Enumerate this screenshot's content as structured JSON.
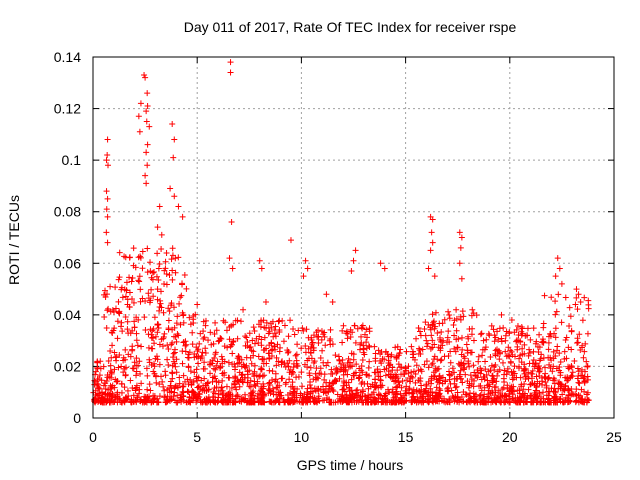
{
  "chart_data": {
    "type": "scatter",
    "title": "Day 011 of 2017, Rate Of TEC Index for receiver rspe",
    "xlabel": "GPS time / hours",
    "ylabel": "ROTI / TECUs",
    "xlim": [
      0,
      25
    ],
    "ylim": [
      0,
      0.14
    ],
    "x_ticks": [
      0,
      5,
      10,
      15,
      20,
      25
    ],
    "x_tick_labels": [
      "0",
      "5",
      "10",
      "15",
      "20",
      "25"
    ],
    "y_ticks": [
      0,
      0.02,
      0.04,
      0.06,
      0.08,
      0.1,
      0.12,
      0.14
    ],
    "y_tick_labels": [
      "0",
      "0.02",
      "0.04",
      "0.06",
      "0.08",
      "0.1",
      "0.12",
      "0.14"
    ],
    "grid": true,
    "marker": "+",
    "color": "#ff0000",
    "x_range_observed": [
      0,
      23.8
    ],
    "y_range_observed": [
      0.005,
      0.138
    ],
    "series": [
      {
        "name": "ROTI",
        "points": [
          [
            2.45,
            0.133
          ],
          [
            2.5,
            0.132
          ],
          [
            2.6,
            0.126
          ],
          [
            2.62,
            0.121
          ],
          [
            2.55,
            0.119
          ],
          [
            2.58,
            0.115
          ],
          [
            2.7,
            0.113
          ],
          [
            2.62,
            0.106
          ],
          [
            2.55,
            0.103
          ],
          [
            2.6,
            0.098
          ],
          [
            2.5,
            0.094
          ],
          [
            2.55,
            0.091
          ],
          [
            2.3,
            0.122
          ],
          [
            2.2,
            0.117
          ],
          [
            2.25,
            0.111
          ],
          [
            0.7,
            0.108
          ],
          [
            0.68,
            0.102
          ],
          [
            0.65,
            0.1
          ],
          [
            0.72,
            0.098
          ],
          [
            0.65,
            0.088
          ],
          [
            0.7,
            0.085
          ],
          [
            0.66,
            0.081
          ],
          [
            0.7,
            0.078
          ],
          [
            0.64,
            0.072
          ],
          [
            0.7,
            0.068
          ],
          [
            3.8,
            0.114
          ],
          [
            3.9,
            0.108
          ],
          [
            3.85,
            0.101
          ],
          [
            3.7,
            0.089
          ],
          [
            3.9,
            0.086
          ],
          [
            4.1,
            0.082
          ],
          [
            4.3,
            0.078
          ],
          [
            3.2,
            0.082
          ],
          [
            3.1,
            0.074
          ],
          [
            3.3,
            0.071
          ],
          [
            6.6,
            0.138
          ],
          [
            6.6,
            0.134
          ],
          [
            6.65,
            0.076
          ],
          [
            6.55,
            0.062
          ],
          [
            6.7,
            0.058
          ],
          [
            9.5,
            0.069
          ],
          [
            10.2,
            0.061
          ],
          [
            10.3,
            0.058
          ],
          [
            10.1,
            0.055
          ],
          [
            12.6,
            0.065
          ],
          [
            12.5,
            0.061
          ],
          [
            12.4,
            0.057
          ],
          [
            13.8,
            0.06
          ],
          [
            14.0,
            0.058
          ],
          [
            16.2,
            0.078
          ],
          [
            16.3,
            0.077
          ],
          [
            16.25,
            0.072
          ],
          [
            16.3,
            0.068
          ],
          [
            16.2,
            0.065
          ],
          [
            16.1,
            0.058
          ],
          [
            16.4,
            0.055
          ],
          [
            17.6,
            0.072
          ],
          [
            17.7,
            0.07
          ],
          [
            17.65,
            0.066
          ],
          [
            17.6,
            0.06
          ],
          [
            17.7,
            0.054
          ],
          [
            22.3,
            0.062
          ],
          [
            22.4,
            0.058
          ],
          [
            22.2,
            0.055
          ],
          [
            22.5,
            0.052
          ],
          [
            23.2,
            0.05
          ],
          [
            23.3,
            0.048
          ],
          [
            23.4,
            0.045
          ],
          [
            8.0,
            0.061
          ],
          [
            8.1,
            0.058
          ],
          [
            8.3,
            0.045
          ],
          [
            7.2,
            0.042
          ],
          [
            5.0,
            0.044
          ],
          [
            11.2,
            0.048
          ],
          [
            11.5,
            0.045
          ],
          [
            18.2,
            0.042
          ],
          [
            19.6,
            0.04
          ],
          [
            20.1,
            0.038
          ]
        ]
      }
    ]
  }
}
